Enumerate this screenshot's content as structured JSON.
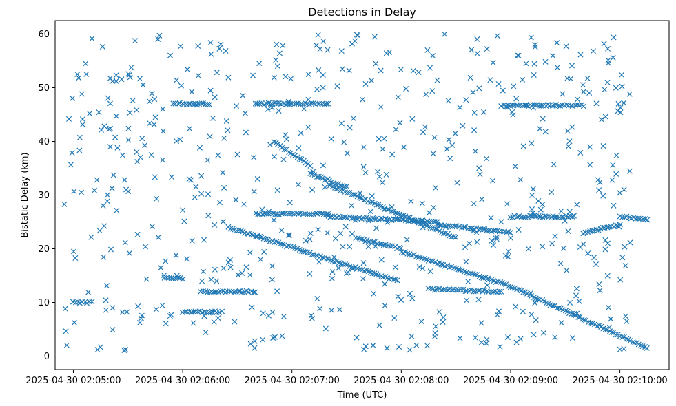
{
  "chart_data": {
    "type": "scatter",
    "title": "Detections in Delay",
    "xlabel": "Time (UTC)",
    "ylabel": "Bistatic Delay (km)",
    "x_start": "2025-04-30 02:04:50",
    "x_end": "2025-04-30 02:10:27",
    "ylim": [
      -2.5,
      62.5
    ],
    "x_ticks": [
      "2025-04-30 02:05:00",
      "2025-04-30 02:06:00",
      "2025-04-30 02:07:00",
      "2025-04-30 02:08:00",
      "2025-04-30 02:09:00",
      "2025-04-30 02:10:00"
    ],
    "y_ticks": [
      0,
      10,
      20,
      30,
      40,
      50,
      60
    ],
    "grid": false,
    "marker": "x",
    "color": "#1f77b4",
    "tracks": [
      {
        "x_start": "2025-04-30 02:06:25",
        "x_end": "2025-04-30 02:07:58",
        "y_start": 24.0,
        "y_end": 14.0
      },
      {
        "x_start": "2025-04-30 02:06:50",
        "x_end": "2025-04-30 02:07:10",
        "y_start": 40.0,
        "y_end": 35.5
      },
      {
        "x_start": "2025-04-30 02:07:10",
        "x_end": "2025-04-30 02:07:30",
        "y_start": 34.0,
        "y_end": 31.5
      },
      {
        "x_start": "2025-04-30 02:07:20",
        "x_end": "2025-04-30 02:08:30",
        "y_start": 32.0,
        "y_end": 22.0
      },
      {
        "x_start": "2025-04-30 02:07:35",
        "x_end": "2025-04-30 02:08:00",
        "y_start": 22.0,
        "y_end": 20.0
      },
      {
        "x_start": "2025-04-30 02:08:00",
        "x_end": "2025-04-30 02:09:00",
        "y_start": 19.5,
        "y_end": 13.0
      },
      {
        "x_start": "2025-04-30 02:09:00",
        "x_end": "2025-04-30 02:10:15",
        "y_start": 13.0,
        "y_end": 1.5
      },
      {
        "x_start": "2025-04-30 02:06:40",
        "x_end": "2025-04-30 02:07:20",
        "y_start": 26.5,
        "y_end": 26.5
      },
      {
        "x_start": "2025-04-30 02:07:20",
        "x_end": "2025-04-30 02:08:20",
        "y_start": 26.0,
        "y_end": 25.0
      },
      {
        "x_start": "2025-04-30 02:08:20",
        "x_end": "2025-04-30 02:09:00",
        "y_start": 24.5,
        "y_end": 23.0
      },
      {
        "x_start": "2025-04-30 02:09:00",
        "x_end": "2025-04-30 02:09:35",
        "y_start": 26.0,
        "y_end": 26.0
      },
      {
        "x_start": "2025-04-30 02:09:40",
        "x_end": "2025-04-30 02:10:00",
        "y_start": 23.0,
        "y_end": 24.5
      },
      {
        "x_start": "2025-04-30 02:10:00",
        "x_end": "2025-04-30 02:10:15",
        "y_start": 26.0,
        "y_end": 25.5
      },
      {
        "x_start": "2025-04-30 02:05:55",
        "x_end": "2025-04-30 02:06:15",
        "y_start": 47.0,
        "y_end": 47.0
      },
      {
        "x_start": "2025-04-30 02:06:40",
        "x_end": "2025-04-30 02:07:20",
        "y_start": 47.0,
        "y_end": 47.0
      },
      {
        "x_start": "2025-04-30 02:08:55",
        "x_end": "2025-04-30 02:09:40",
        "y_start": 46.7,
        "y_end": 46.7
      },
      {
        "x_start": "2025-04-30 02:06:10",
        "x_end": "2025-04-30 02:06:40",
        "y_start": 12.0,
        "y_end": 12.0
      },
      {
        "x_start": "2025-04-30 02:08:15",
        "x_end": "2025-04-30 02:08:55",
        "y_start": 12.5,
        "y_end": 12.0
      },
      {
        "x_start": "2025-04-30 02:05:50",
        "x_end": "2025-04-30 02:06:00",
        "y_start": 14.5,
        "y_end": 14.5
      },
      {
        "x_start": "2025-04-30 02:05:00",
        "x_end": "2025-04-30 02:05:10",
        "y_start": 10.0,
        "y_end": 10.0
      },
      {
        "x_start": "2025-04-30 02:06:00",
        "x_end": "2025-04-30 02:06:20",
        "y_start": 8.2,
        "y_end": 8.2
      }
    ],
    "noise_count": 620
  }
}
